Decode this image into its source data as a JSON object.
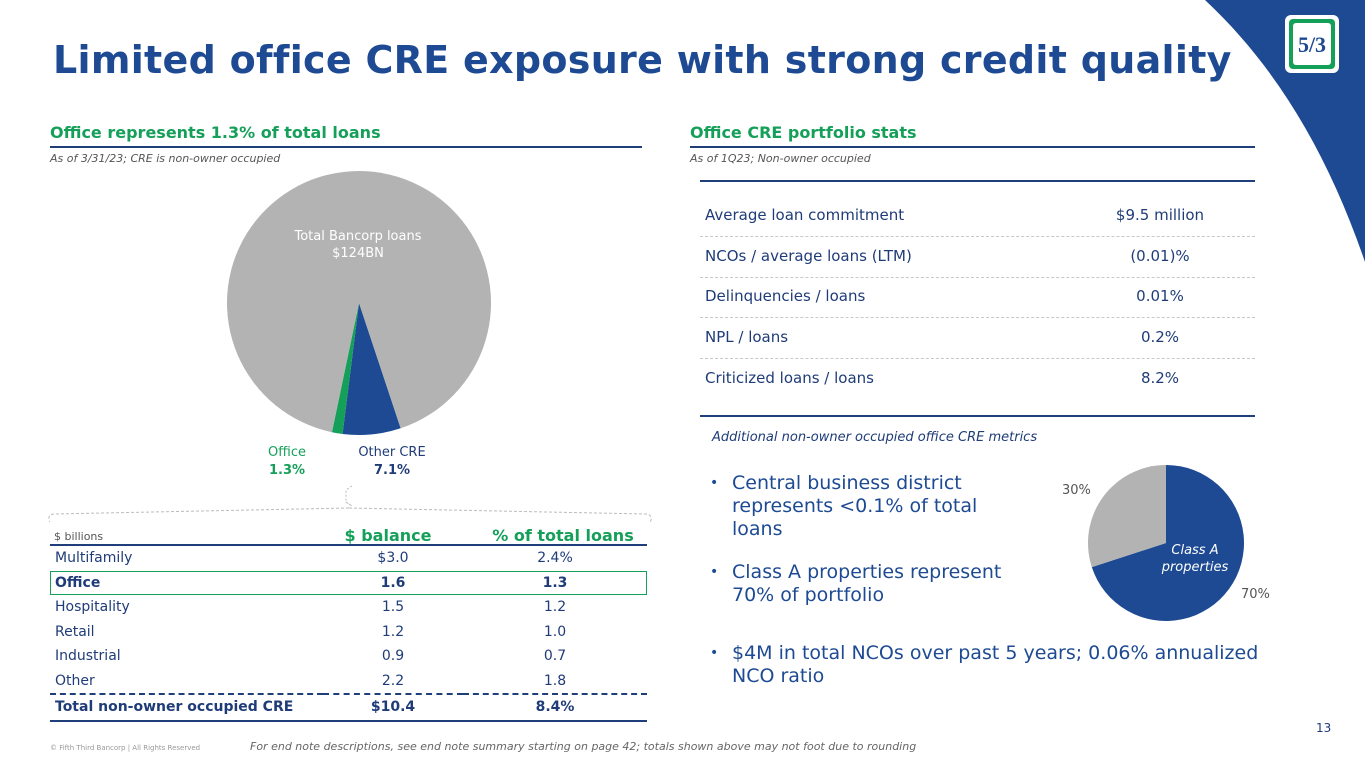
{
  "title": "Limited office CRE exposure with strong credit quality",
  "colors": {
    "navy": "#1d4a93",
    "green": "#15a05a",
    "gray": "#b3b3b3"
  },
  "logo": {
    "icon": "fifth-third-logo-icon",
    "text": "5/3"
  },
  "left": {
    "heading": "Office represents 1.3% of total loans",
    "note": "As of 3/31/23; CRE is non-owner occupied",
    "pie_center_label": [
      "Total Bancorp loans",
      "$124BN"
    ],
    "office_label": "Office",
    "office_value": "1.3%",
    "other_label": "Other CRE",
    "other_value": "7.1%"
  },
  "table": {
    "units": "$ billions",
    "col_balance": "$ balance",
    "col_pct": "% of total loans",
    "rows": [
      {
        "name": "Multifamily",
        "balance": "$3.0",
        "pct": "2.4%"
      },
      {
        "name": "Office",
        "balance": "1.6",
        "pct": "1.3"
      },
      {
        "name": "Hospitality",
        "balance": "1.5",
        "pct": "1.2"
      },
      {
        "name": "Retail",
        "balance": "1.2",
        "pct": "1.0"
      },
      {
        "name": "Industrial",
        "balance": "0.9",
        "pct": "0.7"
      },
      {
        "name": "Other",
        "balance": "2.2",
        "pct": "1.8"
      }
    ],
    "total": {
      "name": "Total non-owner occupied CRE",
      "balance": "$10.4",
      "pct": "8.4%"
    }
  },
  "right": {
    "heading": "Office CRE portfolio stats",
    "note": "As of 1Q23; Non-owner occupied",
    "stats": [
      {
        "key": "Average loan commitment",
        "value": "$9.5 million"
      },
      {
        "key": "NCOs / average loans (LTM)",
        "value": "(0.01)%"
      },
      {
        "key": "Delinquencies / loans",
        "value": "0.01%"
      },
      {
        "key": "NPL / loans",
        "value": "0.2%"
      },
      {
        "key": "Criticized loans / loans",
        "value": "8.2%"
      }
    ],
    "additional_note": "Additional non-owner occupied office CRE metrics",
    "bullets": [
      "Central business district represents <0.1% of total loans",
      "Class A properties represent 70% of portfolio",
      "$4M in total NCOs over past 5 years; 0.06% annualized NCO ratio"
    ],
    "small_pie_class_label": [
      "Class A",
      "properties"
    ],
    "small_pie_pct_a": "70%",
    "small_pie_pct_other": "30%"
  },
  "footer": {
    "copyright": "© Fifth Third Bancorp | All Rights Reserved",
    "endnote": "For end note descriptions, see end note summary starting on page 42; totals shown above may not foot due to rounding",
    "page": "13"
  },
  "chart_data": [
    {
      "type": "pie",
      "title": "",
      "slices": [
        {
          "name": "Total Bancorp loans",
          "value": 91.6,
          "color": "#b3b3b3"
        },
        {
          "name": "Office",
          "value": 1.3,
          "color": "#15a05a"
        },
        {
          "name": "Other CRE",
          "value": 7.1,
          "color": "#1d4a93"
        }
      ]
    },
    {
      "type": "pie",
      "title": "",
      "slices": [
        {
          "name": "Class A properties",
          "value": 70,
          "color": "#1d4a93"
        },
        {
          "name": "",
          "value": 30,
          "color": "#b3b3b3"
        }
      ]
    }
  ]
}
